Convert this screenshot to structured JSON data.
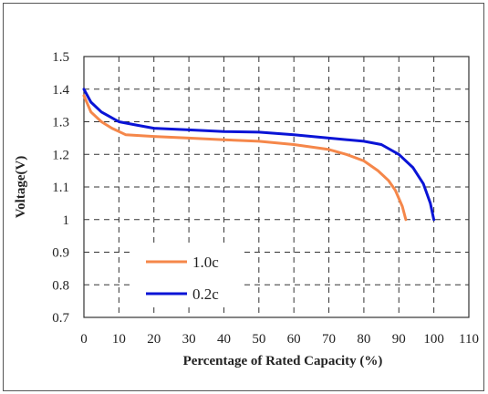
{
  "chart_data": {
    "type": "line",
    "title": "",
    "xlabel": "Percentage of Rated Capacity (%)",
    "ylabel": "Voltage(V)",
    "xlim": [
      0,
      110
    ],
    "ylim": [
      0.7,
      1.5
    ],
    "x_ticks": [
      0,
      10,
      20,
      30,
      40,
      50,
      60,
      70,
      80,
      90,
      100,
      110
    ],
    "y_ticks": [
      0.7,
      0.8,
      0.9,
      1.0,
      1.1,
      1.2,
      1.3,
      1.4,
      1.5
    ],
    "x_tick_labels": [
      "0",
      "10",
      "20",
      "30",
      "40",
      "50",
      "60",
      "70",
      "80",
      "90",
      "100",
      "110"
    ],
    "y_tick_labels": [
      "0.7",
      "0.8",
      "0.9",
      "1",
      "1.1",
      "1.2",
      "1.3",
      "1.4",
      "1.5"
    ],
    "grid": true,
    "legend_position": "lower-left",
    "series": [
      {
        "name": "1.0c",
        "color": "#f5874a",
        "points": [
          [
            0,
            1.38
          ],
          [
            2,
            1.33
          ],
          [
            5,
            1.3
          ],
          [
            8,
            1.28
          ],
          [
            12,
            1.26
          ],
          [
            20,
            1.255
          ],
          [
            30,
            1.25
          ],
          [
            40,
            1.245
          ],
          [
            50,
            1.24
          ],
          [
            60,
            1.23
          ],
          [
            70,
            1.215
          ],
          [
            75,
            1.2
          ],
          [
            80,
            1.18
          ],
          [
            84,
            1.15
          ],
          [
            87,
            1.12
          ],
          [
            89,
            1.09
          ],
          [
            91,
            1.04
          ],
          [
            92,
            1.0
          ]
        ]
      },
      {
        "name": "0.2c",
        "color": "#0a14d6",
        "points": [
          [
            0,
            1.4
          ],
          [
            2,
            1.36
          ],
          [
            5,
            1.33
          ],
          [
            10,
            1.3
          ],
          [
            15,
            1.29
          ],
          [
            20,
            1.28
          ],
          [
            30,
            1.275
          ],
          [
            40,
            1.27
          ],
          [
            50,
            1.268
          ],
          [
            60,
            1.26
          ],
          [
            70,
            1.25
          ],
          [
            80,
            1.24
          ],
          [
            85,
            1.23
          ],
          [
            90,
            1.2
          ],
          [
            94,
            1.16
          ],
          [
            97,
            1.11
          ],
          [
            99,
            1.05
          ],
          [
            100,
            1.0
          ]
        ]
      }
    ]
  }
}
